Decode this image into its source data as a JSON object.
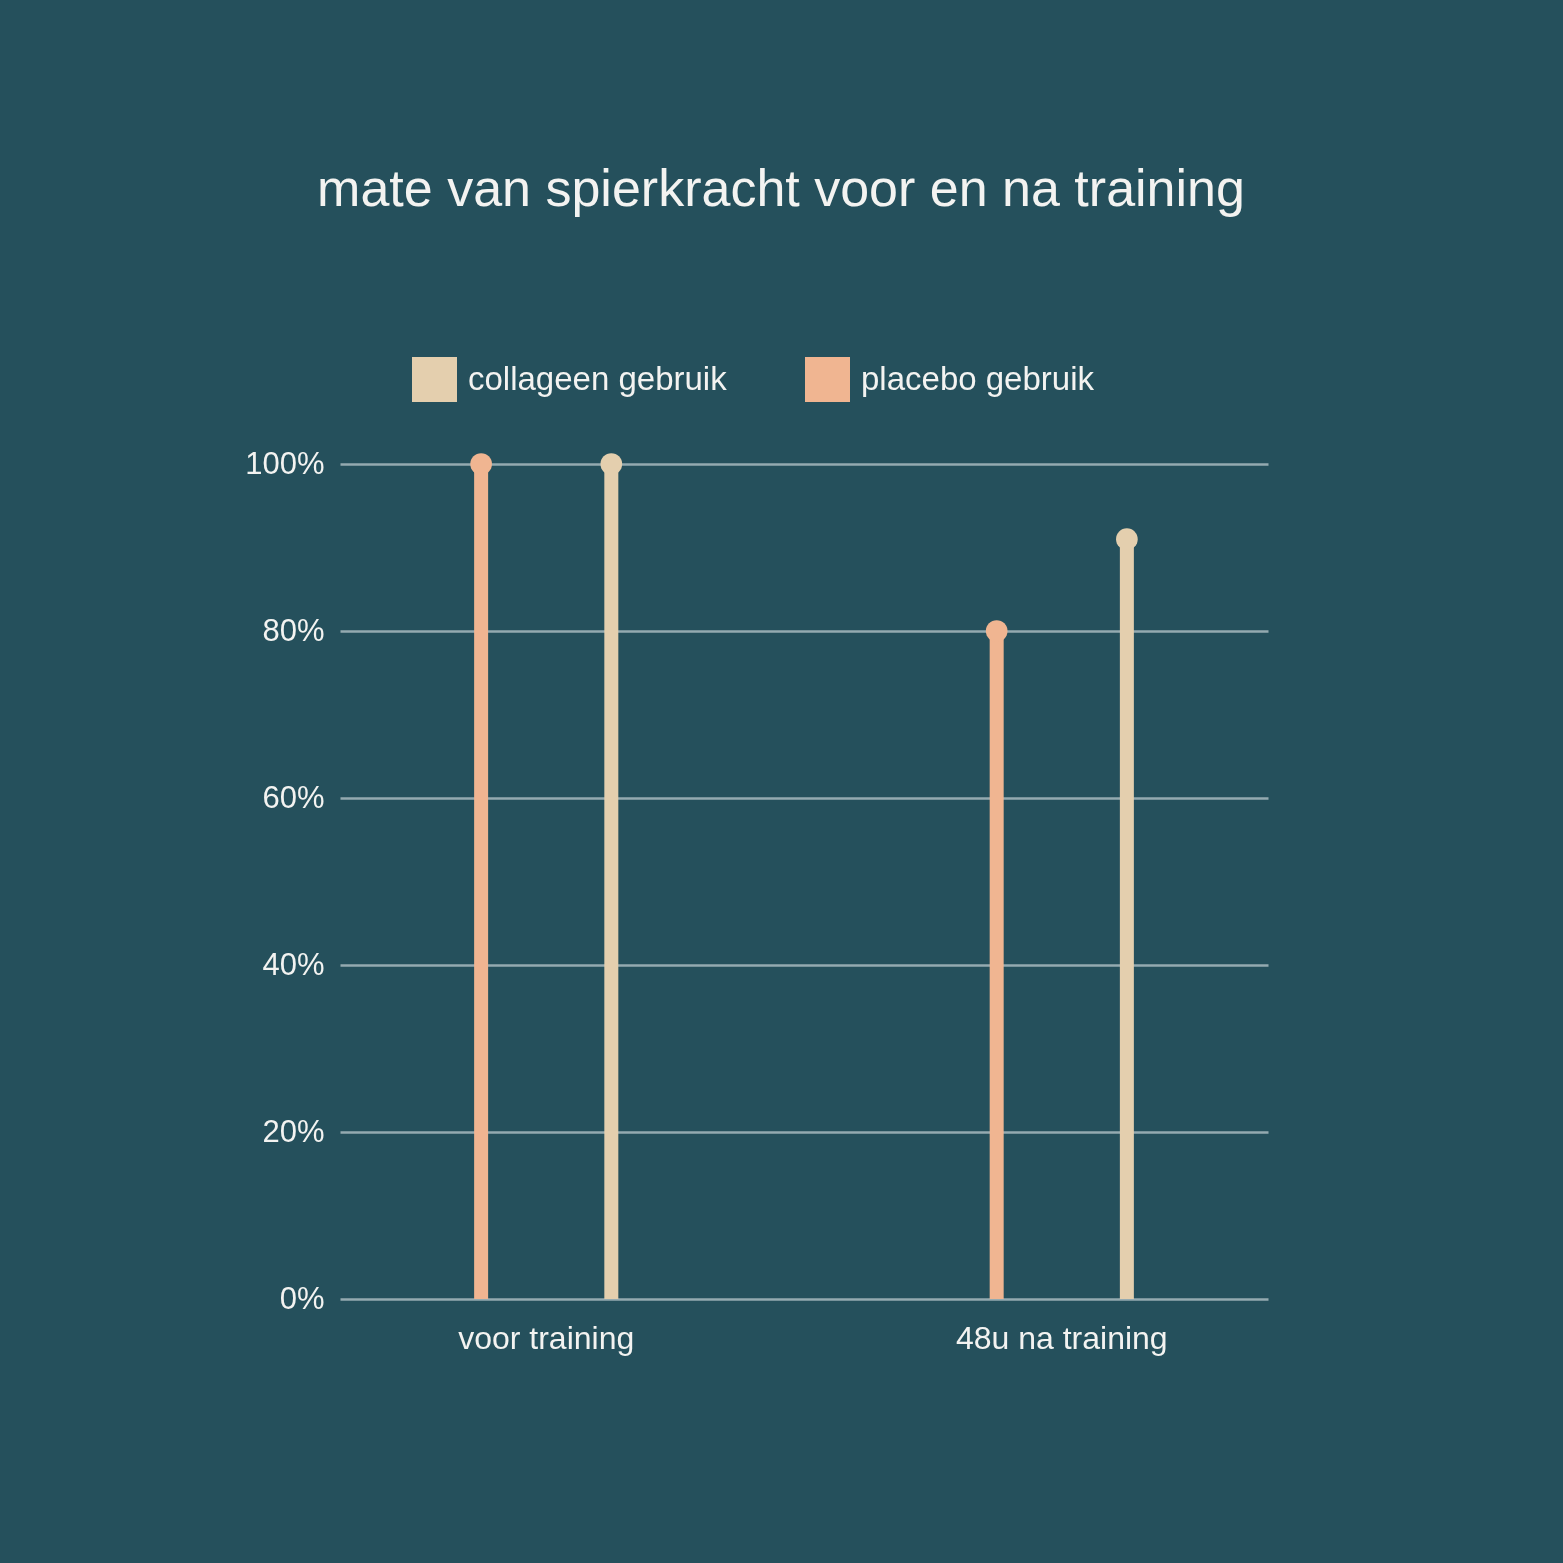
{
  "chart_data": {
    "type": "lollipop",
    "title": "mate van spierkracht voor en na training",
    "categories": [
      "voor training",
      "48u na training"
    ],
    "series": [
      {
        "name": "collageen gebruik",
        "color": "#e4cfae",
        "values": [
          100,
          91
        ]
      },
      {
        "name": "placebo gebruik",
        "color": "#f0b591",
        "values": [
          100,
          80
        ]
      }
    ],
    "ylim": [
      0,
      100
    ],
    "yticks": [
      {
        "value": 0,
        "label": "0%"
      },
      {
        "value": 20,
        "label": "20%"
      },
      {
        "value": 40,
        "label": "40%"
      },
      {
        "value": 60,
        "label": "60%"
      },
      {
        "value": 80,
        "label": "80%"
      },
      {
        "value": 100,
        "label": "100%"
      }
    ],
    "grid": "y",
    "legend": "top",
    "marker": "circle"
  }
}
